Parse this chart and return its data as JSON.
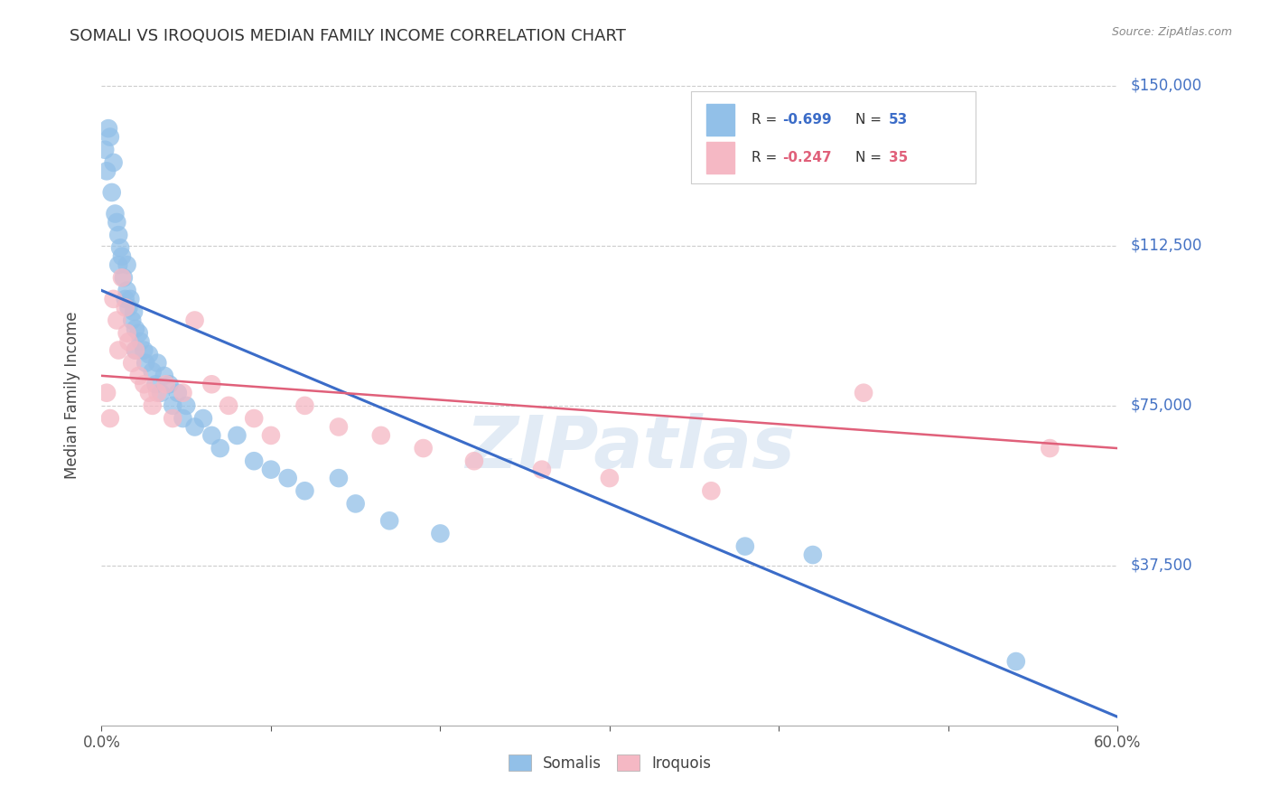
{
  "title": "SOMALI VS IROQUOIS MEDIAN FAMILY INCOME CORRELATION CHART",
  "source": "Source: ZipAtlas.com",
  "ylabel": "Median Family Income",
  "ytick_labels": [
    "$37,500",
    "$75,000",
    "$112,500",
    "$150,000"
  ],
  "ytick_values": [
    37500,
    75000,
    112500,
    150000
  ],
  "ymin": 0,
  "ymax": 155000,
  "xmin": 0.0,
  "xmax": 0.6,
  "legend_somali": "Somalis",
  "legend_iroquois": "Iroquois",
  "blue_scatter_color": "#92C0E8",
  "pink_scatter_color": "#F5B8C4",
  "blue_line_color": "#3B6CC8",
  "pink_line_color": "#E0607A",
  "blue_legend_color": "#92C0E8",
  "pink_legend_color": "#F5B8C4",
  "watermark": "ZIPatlas",
  "somali_x": [
    0.002,
    0.003,
    0.004,
    0.005,
    0.006,
    0.007,
    0.008,
    0.009,
    0.01,
    0.01,
    0.011,
    0.012,
    0.013,
    0.014,
    0.015,
    0.015,
    0.016,
    0.017,
    0.018,
    0.019,
    0.02,
    0.02,
    0.022,
    0.023,
    0.025,
    0.026,
    0.028,
    0.03,
    0.032,
    0.033,
    0.035,
    0.037,
    0.04,
    0.042,
    0.045,
    0.048,
    0.05,
    0.055,
    0.06,
    0.065,
    0.07,
    0.08,
    0.09,
    0.1,
    0.11,
    0.12,
    0.14,
    0.15,
    0.17,
    0.2,
    0.38,
    0.42,
    0.54
  ],
  "somali_y": [
    135000,
    130000,
    140000,
    138000,
    125000,
    132000,
    120000,
    118000,
    115000,
    108000,
    112000,
    110000,
    105000,
    100000,
    108000,
    102000,
    98000,
    100000,
    95000,
    97000,
    93000,
    88000,
    92000,
    90000,
    88000,
    85000,
    87000,
    83000,
    80000,
    85000,
    78000,
    82000,
    80000,
    75000,
    78000,
    72000,
    75000,
    70000,
    72000,
    68000,
    65000,
    68000,
    62000,
    60000,
    58000,
    55000,
    58000,
    52000,
    48000,
    45000,
    42000,
    40000,
    15000
  ],
  "iroquois_x": [
    0.003,
    0.005,
    0.007,
    0.009,
    0.01,
    0.012,
    0.014,
    0.015,
    0.016,
    0.018,
    0.02,
    0.022,
    0.025,
    0.028,
    0.03,
    0.033,
    0.038,
    0.042,
    0.048,
    0.055,
    0.065,
    0.075,
    0.09,
    0.1,
    0.12,
    0.14,
    0.165,
    0.19,
    0.22,
    0.26,
    0.3,
    0.36,
    0.45,
    0.56
  ],
  "iroquois_y": [
    78000,
    72000,
    100000,
    95000,
    88000,
    105000,
    98000,
    92000,
    90000,
    85000,
    88000,
    82000,
    80000,
    78000,
    75000,
    78000,
    80000,
    72000,
    78000,
    95000,
    80000,
    75000,
    72000,
    68000,
    75000,
    70000,
    68000,
    65000,
    62000,
    60000,
    58000,
    55000,
    78000,
    65000
  ]
}
